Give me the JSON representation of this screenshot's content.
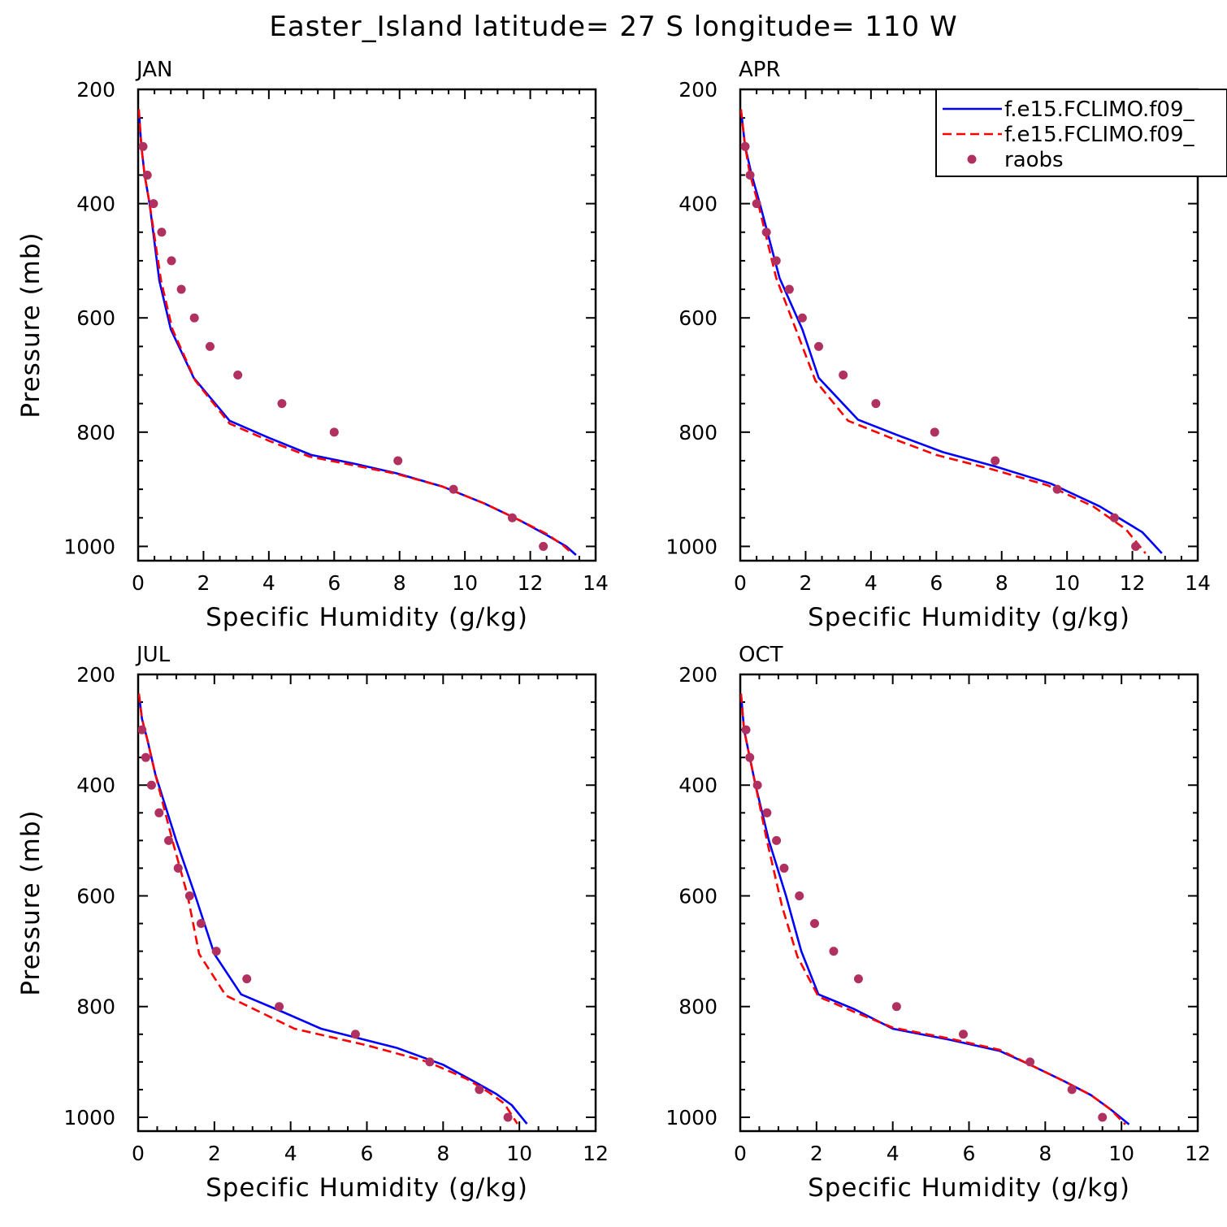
{
  "figure": {
    "title": "Easter_Island  latitude= 27 S longitude= 110 W"
  },
  "legend": {
    "location": "top-right of APR panel",
    "entries": [
      {
        "label": "f.e15.FCLIMO.f09_",
        "style": "solid",
        "color": "#0000ff"
      },
      {
        "label": "f.e15.FCLIMO.f09_",
        "style": "dashed",
        "color": "#ff0000"
      },
      {
        "label": "raobs",
        "style": "marker",
        "color": "#b03060"
      }
    ]
  },
  "chart_data": [
    {
      "type": "line",
      "title": "JAN",
      "xlabel": "Specific Humidity (g/kg)",
      "ylabel": "Pressure (mb)",
      "xlim": [
        0,
        14
      ],
      "ylim": [
        200,
        1025
      ],
      "y_inverted": true,
      "xticks": [
        "0",
        "2",
        "4",
        "6",
        "8",
        "10",
        "12",
        "14"
      ],
      "yticks": [
        "200",
        "400",
        "600",
        "800",
        "1000"
      ],
      "series": [
        {
          "name": "f.e15.FCLIMO.f09_",
          "color": "#0000ff",
          "style": "solid",
          "x": [
            0.02,
            0.1,
            0.2,
            0.35,
            0.65,
            1.0,
            1.7,
            2.8,
            4.0,
            5.3,
            6.6,
            7.9,
            9.3,
            10.6,
            11.7,
            12.5,
            13.1,
            13.4
          ],
          "y": [
            235,
            300,
            350,
            400,
            535,
            620,
            705,
            780,
            810,
            840,
            855,
            872,
            895,
            925,
            955,
            980,
            1000,
            1015
          ]
        },
        {
          "name": "f.e15.FCLIMO.f09_",
          "color": "#ff0000",
          "style": "dashed",
          "x": [
            0.02,
            0.1,
            0.2,
            0.35,
            0.7,
            1.05,
            1.75,
            2.8,
            4.0,
            5.25,
            6.6,
            7.9,
            9.3,
            10.6,
            11.7,
            12.5,
            13.0,
            13.3
          ],
          "y": [
            235,
            300,
            350,
            400,
            535,
            620,
            710,
            785,
            815,
            843,
            858,
            873,
            895,
            925,
            955,
            978,
            998,
            1013
          ]
        },
        {
          "name": "raobs",
          "color": "#b03060",
          "style": "marker",
          "x": [
            0.15,
            0.28,
            0.47,
            0.72,
            1.02,
            1.32,
            1.72,
            2.2,
            3.05,
            4.4,
            6.0,
            7.95,
            9.65,
            11.45,
            12.4
          ],
          "y": [
            300,
            350,
            400,
            450,
            500,
            550,
            600,
            650,
            700,
            750,
            800,
            850,
            900,
            950,
            1000
          ]
        }
      ]
    },
    {
      "type": "line",
      "title": "APR",
      "xlabel": "Specific Humidity (g/kg)",
      "ylabel": "",
      "xlim": [
        0,
        14
      ],
      "ylim": [
        200,
        1025
      ],
      "y_inverted": true,
      "xticks": [
        "0",
        "2",
        "4",
        "6",
        "8",
        "10",
        "12",
        "14"
      ],
      "yticks": [
        "200",
        "400",
        "600",
        "800",
        "1000"
      ],
      "series": [
        {
          "name": "f.e15.FCLIMO.f09_",
          "color": "#0000ff",
          "style": "solid",
          "x": [
            0.02,
            0.15,
            0.35,
            0.6,
            1.2,
            1.9,
            2.4,
            3.6,
            4.8,
            6.2,
            7.8,
            9.5,
            11.0,
            12.3,
            12.9
          ],
          "y": [
            235,
            300,
            350,
            400,
            530,
            620,
            705,
            778,
            805,
            835,
            860,
            890,
            930,
            975,
            1012
          ]
        },
        {
          "name": "f.e15.FCLIMO.f09_",
          "color": "#ff0000",
          "style": "dashed",
          "x": [
            0.02,
            0.15,
            0.3,
            0.55,
            1.1,
            1.7,
            2.3,
            3.3,
            4.6,
            6.0,
            7.7,
            9.4,
            10.8,
            11.8,
            12.4
          ],
          "y": [
            235,
            300,
            350,
            400,
            530,
            620,
            710,
            780,
            810,
            840,
            865,
            893,
            930,
            970,
            1012
          ]
        },
        {
          "name": "raobs",
          "color": "#b03060",
          "style": "marker",
          "x": [
            0.15,
            0.3,
            0.5,
            0.8,
            1.1,
            1.5,
            1.9,
            2.4,
            3.15,
            4.15,
            5.95,
            7.8,
            9.7,
            11.45,
            12.1
          ],
          "y": [
            300,
            350,
            400,
            450,
            500,
            550,
            600,
            650,
            700,
            750,
            800,
            850,
            900,
            950,
            1000
          ]
        }
      ]
    },
    {
      "type": "line",
      "title": "JUL",
      "xlabel": "Specific Humidity (g/kg)",
      "ylabel": "Pressure (mb)",
      "xlim": [
        0,
        12
      ],
      "ylim": [
        200,
        1025
      ],
      "y_inverted": true,
      "xticks": [
        "0",
        "2",
        "4",
        "6",
        "8",
        "10",
        "12"
      ],
      "yticks": [
        "200",
        "400",
        "600",
        "800",
        "1000"
      ],
      "series": [
        {
          "name": "f.e15.FCLIMO.f09_",
          "color": "#0000ff",
          "style": "solid",
          "x": [
            0.02,
            0.1,
            0.25,
            0.45,
            1.0,
            1.5,
            2.0,
            2.7,
            3.8,
            4.8,
            6.8,
            8.0,
            8.8,
            9.4,
            9.8,
            10.2
          ],
          "y": [
            235,
            280,
            320,
            380,
            500,
            600,
            705,
            778,
            810,
            840,
            875,
            905,
            935,
            958,
            978,
            1012
          ]
        },
        {
          "name": "f.e15.FCLIMO.f09_",
          "color": "#ff0000",
          "style": "dashed",
          "x": [
            0.02,
            0.1,
            0.25,
            0.45,
            0.9,
            1.3,
            1.6,
            2.3,
            3.2,
            4.1,
            6.0,
            7.6,
            8.6,
            9.2,
            9.6,
            9.95
          ],
          "y": [
            235,
            280,
            320,
            380,
            500,
            600,
            705,
            780,
            810,
            840,
            870,
            900,
            930,
            955,
            975,
            1012
          ]
        },
        {
          "name": "raobs",
          "color": "#b03060",
          "style": "marker",
          "x": [
            0.1,
            0.2,
            0.35,
            0.55,
            0.8,
            1.05,
            1.35,
            1.65,
            2.05,
            2.85,
            3.7,
            5.7,
            7.65,
            8.95,
            9.7
          ],
          "y": [
            300,
            350,
            400,
            450,
            500,
            550,
            600,
            650,
            700,
            750,
            800,
            850,
            900,
            950,
            1000
          ]
        }
      ]
    },
    {
      "type": "line",
      "title": "OCT",
      "xlabel": "Specific Humidity (g/kg)",
      "ylabel": "",
      "xlim": [
        0,
        12
      ],
      "ylim": [
        200,
        1025
      ],
      "y_inverted": true,
      "xticks": [
        "0",
        "2",
        "4",
        "6",
        "8",
        "10",
        "12"
      ],
      "yticks": [
        "200",
        "400",
        "600",
        "800",
        "1000"
      ],
      "series": [
        {
          "name": "f.e15.FCLIMO.f09_",
          "color": "#0000ff",
          "style": "solid",
          "x": [
            0.02,
            0.1,
            0.25,
            0.4,
            0.75,
            1.2,
            1.6,
            2.05,
            3.0,
            4.0,
            5.5,
            6.8,
            7.6,
            8.5,
            9.2,
            9.7,
            10.2
          ],
          "y": [
            235,
            300,
            350,
            400,
            500,
            600,
            700,
            778,
            805,
            840,
            860,
            880,
            905,
            935,
            960,
            985,
            1013
          ]
        },
        {
          "name": "f.e15.FCLIMO.f09_",
          "color": "#ff0000",
          "style": "dashed",
          "x": [
            0.02,
            0.1,
            0.25,
            0.4,
            0.7,
            1.1,
            1.5,
            2.05,
            3.0,
            4.0,
            5.5,
            6.8,
            7.6,
            8.5,
            9.2,
            9.7,
            10.1
          ],
          "y": [
            235,
            300,
            350,
            400,
            500,
            620,
            710,
            782,
            810,
            838,
            858,
            878,
            905,
            935,
            960,
            985,
            1013
          ]
        },
        {
          "name": "raobs",
          "color": "#b03060",
          "style": "marker",
          "x": [
            0.15,
            0.25,
            0.45,
            0.7,
            0.95,
            1.15,
            1.55,
            1.95,
            2.45,
            3.1,
            4.1,
            5.85,
            7.6,
            8.7,
            9.5
          ],
          "y": [
            300,
            350,
            400,
            450,
            500,
            550,
            600,
            650,
            700,
            750,
            800,
            850,
            900,
            950,
            1000
          ]
        }
      ]
    }
  ]
}
